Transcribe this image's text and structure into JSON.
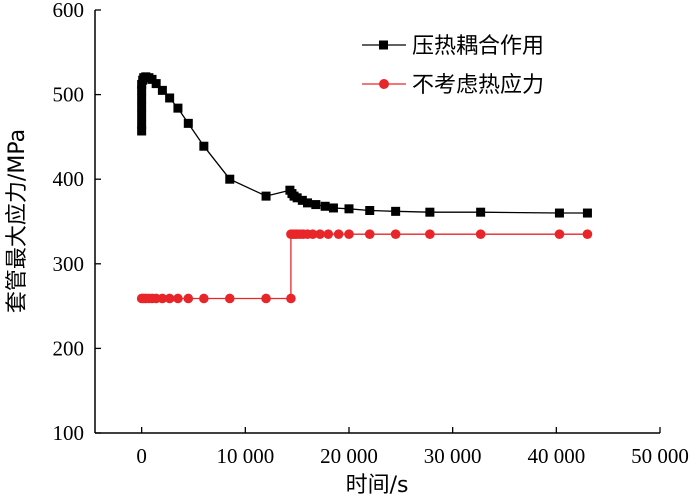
{
  "chart_data": {
    "type": "line",
    "xlabel": "时间/s",
    "ylabel": "套管最大应力/MPa",
    "xlim": [
      -4500,
      50000
    ],
    "ylim": [
      100,
      600
    ],
    "xticks": [
      0,
      10000,
      20000,
      30000,
      40000,
      50000
    ],
    "xtick_labels": [
      "0",
      "10 000",
      "20 000",
      "30 000",
      "40 000",
      "50 000"
    ],
    "yticks": [
      100,
      200,
      300,
      400,
      500,
      600
    ],
    "ytick_labels": [
      "100",
      "200",
      "300",
      "400",
      "500",
      "600"
    ],
    "legend_position": "top-right",
    "series": [
      {
        "name": "压热耦合作用",
        "color": "#000000",
        "marker": "square",
        "x": [
          0,
          0,
          0,
          0,
          0,
          0,
          0,
          100,
          200,
          400,
          700,
          1000,
          1400,
          2000,
          2700,
          3500,
          4500,
          6000,
          8500,
          12000,
          14300,
          14500,
          14700,
          15000,
          15500,
          16000,
          16800,
          17700,
          18500,
          20000,
          22000,
          24500,
          27800,
          32700,
          40300,
          43000
        ],
        "y": [
          457,
          465,
          475,
          485,
          495,
          505,
          512,
          517,
          520,
          521,
          520,
          518,
          513,
          505,
          496,
          484,
          466,
          439,
          400,
          380,
          387,
          383,
          380,
          378,
          375,
          372,
          370,
          368,
          366,
          365,
          363,
          362,
          361,
          361,
          360,
          360
        ]
      },
      {
        "name": "不考虑热应力",
        "color": "#e8262a",
        "marker": "circle",
        "x": [
          0,
          200,
          400,
          700,
          1000,
          1400,
          2000,
          2700,
          3500,
          4500,
          6000,
          8500,
          12000,
          14400,
          14400,
          14600,
          14800,
          15000,
          15300,
          15600,
          16000,
          16500,
          17200,
          18000,
          19000,
          20000,
          22000,
          24500,
          27800,
          32700,
          40300,
          43000
        ],
        "y": [
          259,
          259,
          259,
          259,
          259,
          259,
          259,
          259,
          259,
          259,
          259,
          259,
          259,
          259,
          335,
          335,
          335,
          335,
          335,
          335,
          335,
          335,
          335,
          335,
          335,
          335,
          335,
          335,
          335,
          335,
          335,
          335
        ]
      }
    ]
  }
}
